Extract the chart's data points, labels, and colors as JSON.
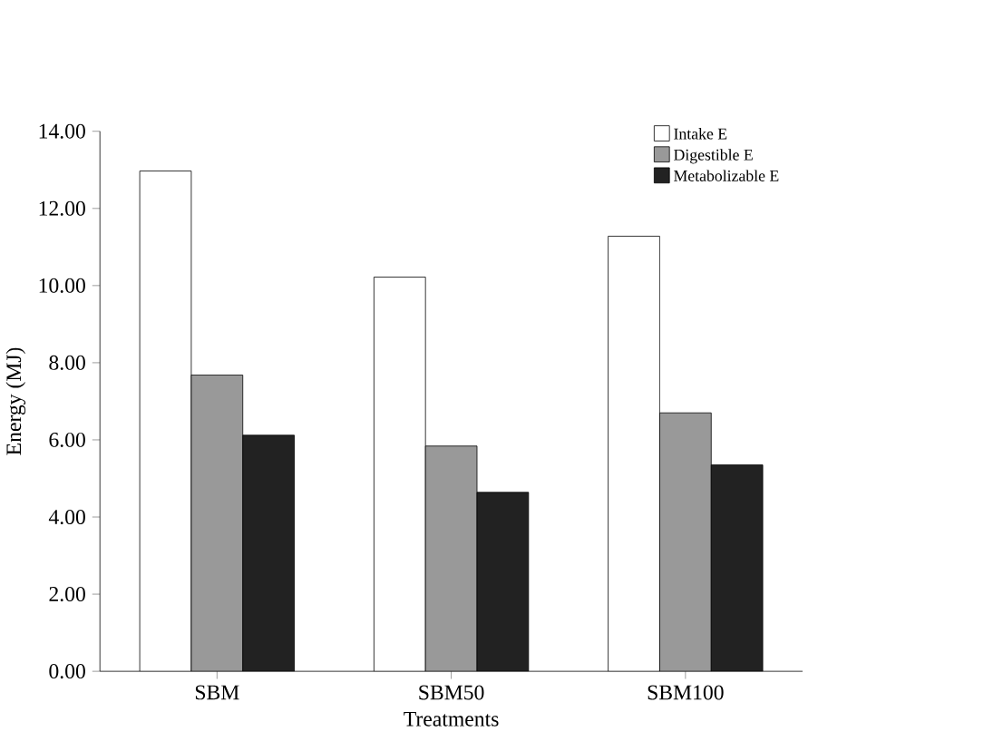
{
  "chart_data": {
    "type": "bar",
    "xlabel": "Treatments",
    "ylabel": "Energy (MJ)",
    "categories": [
      "SBM",
      "SBM50",
      "SBM100"
    ],
    "series": [
      {
        "name": "Intake E",
        "color": "#ffffff",
        "values": [
          12.97,
          10.22,
          11.28
        ]
      },
      {
        "name": "Digestible E",
        "color": "#999999",
        "values": [
          7.68,
          5.84,
          6.7
        ]
      },
      {
        "name": "Metabolizable E",
        "color": "#222222",
        "values": [
          6.12,
          4.64,
          5.35
        ]
      }
    ],
    "ylim": [
      0,
      14
    ],
    "yticks": [
      {
        "value": 0,
        "label": "0.00"
      },
      {
        "value": 2,
        "label": "2.00"
      },
      {
        "value": 4,
        "label": "4.00"
      },
      {
        "value": 6,
        "label": "6.00"
      },
      {
        "value": 8,
        "label": "8.00"
      },
      {
        "value": 10,
        "label": "10.00"
      },
      {
        "value": 12,
        "label": "12.00"
      },
      {
        "value": 14,
        "label": "14.00"
      }
    ],
    "grid": false,
    "legend": "top right"
  }
}
